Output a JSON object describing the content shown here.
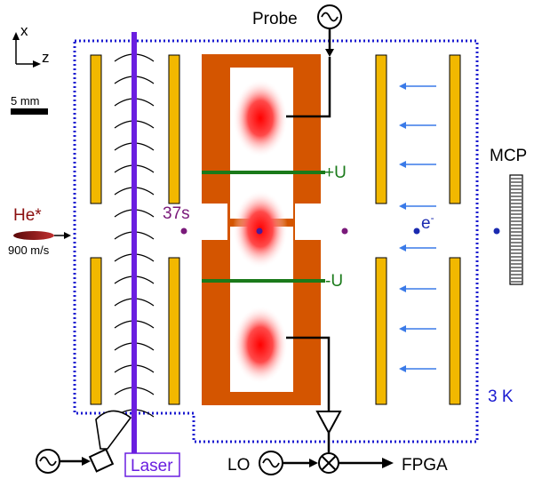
{
  "axes": {
    "x_label": "x",
    "z_label": "z"
  },
  "scale_bar": {
    "label": "5 mm"
  },
  "beam": {
    "species": "He*",
    "speed": "900 m/s"
  },
  "probe": {
    "label": "Probe"
  },
  "electrodes": {
    "plus_label": "+U",
    "minus_label": "-U"
  },
  "rydberg_state": {
    "label": "37s"
  },
  "electron": {
    "label": "e-"
  },
  "detector": {
    "label": "MCP"
  },
  "temperature": {
    "label": "3 K"
  },
  "laser": {
    "label": "Laser"
  },
  "readout": {
    "lo_label": "LO",
    "fpga_label": "FPGA"
  },
  "colors": {
    "laser": "#6a1ee0",
    "plates": "#f2b800",
    "cavity_copper": "#d45500",
    "field_green": "#1a7a1a",
    "shield_blue": "#1a1ad0",
    "arrow_blue": "#3a7ae8",
    "atom_purple": "#7a1a7a",
    "he_red": "#8b1010"
  }
}
